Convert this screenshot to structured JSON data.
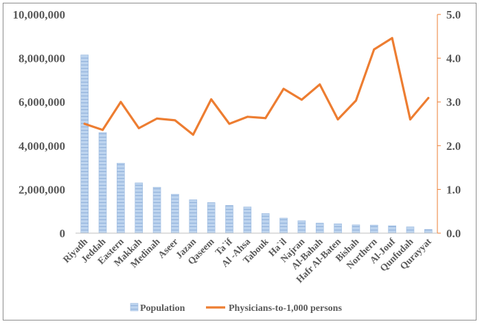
{
  "chart_data": {
    "type": "bar",
    "categories": [
      "Riyadh",
      "Jeddah",
      "Eastern",
      "Makkah",
      "Medinah",
      "Aseer",
      "Jazan",
      "Qaseem",
      "Ta`if",
      "Al -Ahsa",
      "Tabouk",
      "Ha`il",
      "Najran",
      "Al-Bahah",
      "Hafr Al-Baten",
      "Bishah",
      "Northern",
      "Al-Jouf",
      "Qunfudah",
      "Qurayyat"
    ],
    "series": [
      {
        "name": "Population",
        "type": "bar",
        "axis": "left",
        "color": "#a9c4e4",
        "values": [
          8150000,
          4600000,
          3200000,
          2300000,
          2100000,
          1780000,
          1530000,
          1400000,
          1270000,
          1200000,
          900000,
          690000,
          570000,
          460000,
          430000,
          380000,
          370000,
          340000,
          290000,
          170000
        ]
      },
      {
        "name": "Physicians-to-1,000 persons",
        "type": "line",
        "axis": "right",
        "color": "#ed7d31",
        "values": [
          2.5,
          2.36,
          3.0,
          2.4,
          2.62,
          2.58,
          2.25,
          3.06,
          2.5,
          2.66,
          2.63,
          3.3,
          3.05,
          3.4,
          2.6,
          3.03,
          4.2,
          4.46,
          2.6,
          3.09
        ]
      }
    ],
    "y_left": {
      "lim": [
        0,
        10000000
      ],
      "ticks": [
        0,
        2000000,
        4000000,
        6000000,
        8000000,
        10000000
      ],
      "tick_labels": [
        "0",
        "2,000,000",
        "4,000,000",
        "6,000,000",
        "8,000,000",
        "10,000,000"
      ]
    },
    "y_right": {
      "lim": [
        0,
        5
      ],
      "ticks": [
        0,
        1,
        2,
        3,
        4,
        5
      ],
      "tick_labels": [
        "0.0",
        "1.0",
        "2.0",
        "3.0",
        "4.0",
        "5.0"
      ],
      "color": "#ed7d31"
    },
    "title": "",
    "xlabel": "",
    "ylabel": "",
    "grid": false,
    "legend_position": "bottom"
  }
}
